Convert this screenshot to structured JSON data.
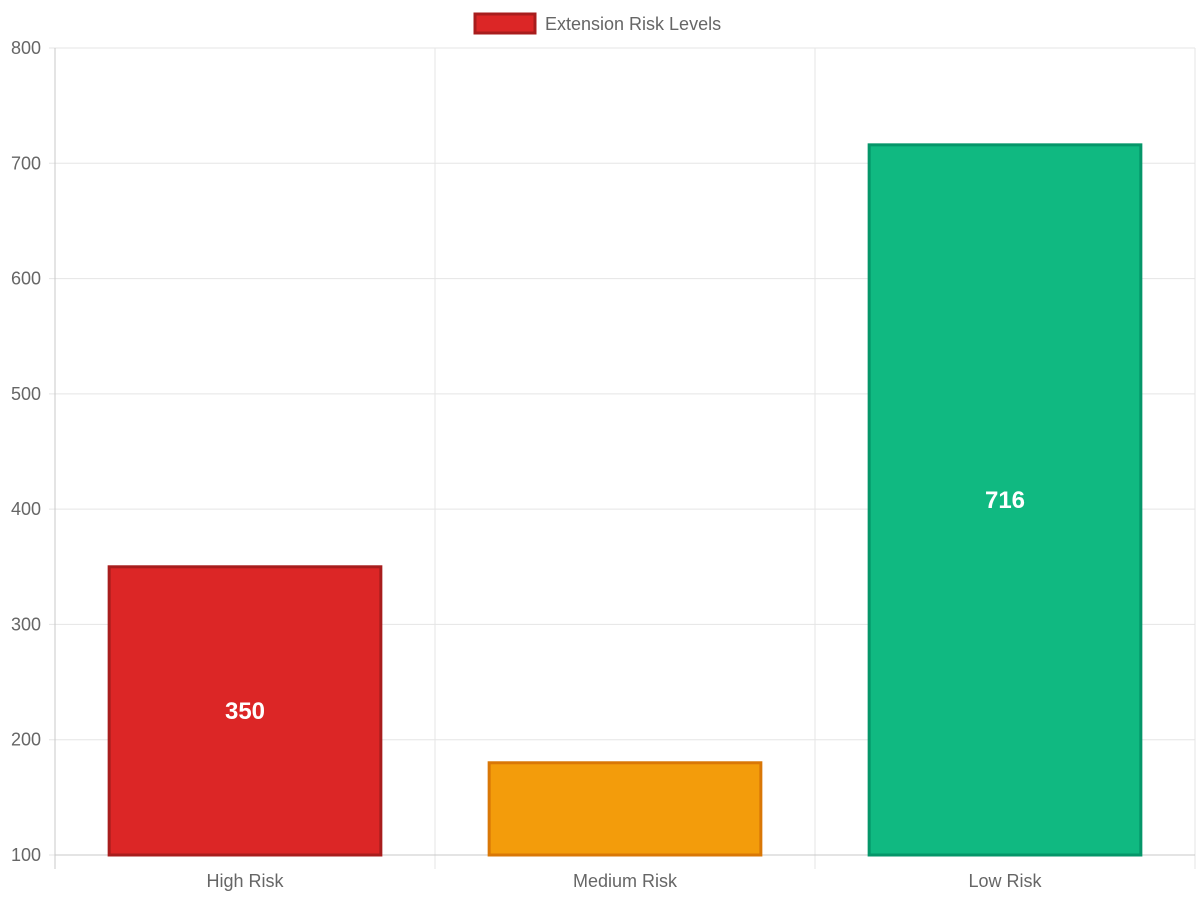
{
  "chart_data": {
    "type": "bar",
    "categories": [
      "High Risk",
      "Medium Risk",
      "Low Risk"
    ],
    "series": [
      {
        "name": "Extension Risk Levels",
        "values": [
          350,
          180,
          716
        ],
        "data_labels": [
          "350",
          "",
          "716"
        ]
      }
    ],
    "ylim": [
      100,
      800
    ],
    "yticks": [
      100,
      200,
      300,
      400,
      500,
      600,
      700,
      800
    ],
    "grid": true,
    "legend": "top-center",
    "colors": {
      "fills": [
        "#dc2626",
        "#f39c0b",
        "#10b981"
      ],
      "borders": [
        "#a81d1d",
        "#d97706",
        "#059669"
      ],
      "grid": "#e5e5e5",
      "axis": "#c8c8c8",
      "tick_text": "#666666",
      "data_label": "#ffffff"
    }
  }
}
